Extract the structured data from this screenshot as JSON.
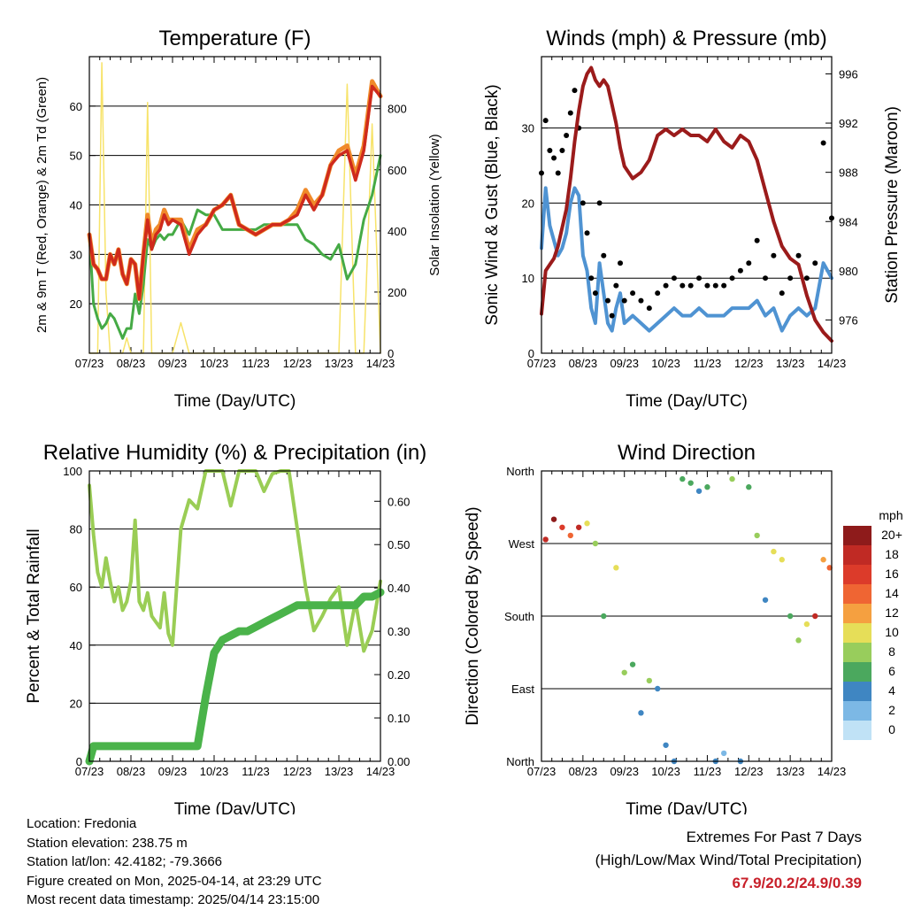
{
  "x_ticks": [
    "07/23",
    "08/23",
    "09/23",
    "10/23",
    "11/23",
    "12/23",
    "13/23",
    "14/23"
  ],
  "colors": {
    "temp_2m": "#cf2a1c",
    "temp_9m": "#f08a2a",
    "dewpoint": "#45aa45",
    "solar": "#f7e36a",
    "wind": "#4f93d2",
    "gust": "#000000",
    "pressure": "#9b1b1b",
    "rh": "#9acd55",
    "precip": "#4ab34a"
  },
  "chart_data": [
    {
      "type": "line",
      "title": "Temperature (F)",
      "xlabel": "Time (Day/UTC)",
      "ylabel": "2m & 9m T (Red, Orange) & 2m Td (Green)",
      "y2label": "Solar Insolation (Yellow)",
      "ylim": [
        10,
        70
      ],
      "y_ticks": [
        20,
        30,
        40,
        50,
        60
      ],
      "y2lim": [
        0,
        970
      ],
      "y2_ticks": [
        0,
        200,
        400,
        600,
        800
      ],
      "x": [
        0,
        0.1,
        0.2,
        0.3,
        0.4,
        0.5,
        0.6,
        0.7,
        0.8,
        0.9,
        1.0,
        1.1,
        1.2,
        1.3,
        1.4,
        1.5,
        1.6,
        1.7,
        1.8,
        1.9,
        2.0,
        2.2,
        2.4,
        2.6,
        2.8,
        3.0,
        3.2,
        3.4,
        3.6,
        3.8,
        4.0,
        4.2,
        4.4,
        4.6,
        4.8,
        5.0,
        5.2,
        5.4,
        5.6,
        5.8,
        6.0,
        6.2,
        6.4,
        6.6,
        6.8,
        7.0
      ],
      "series": [
        {
          "name": "2m T",
          "values": [
            34,
            28,
            27,
            25,
            25,
            30,
            28,
            31,
            26,
            24,
            29,
            28,
            21,
            30,
            37,
            31,
            34,
            35,
            38,
            36,
            37,
            36,
            30,
            34,
            36,
            39,
            40,
            42,
            36,
            35,
            34,
            35,
            36,
            36,
            37,
            38,
            42,
            39,
            42,
            48,
            50,
            51,
            45,
            51,
            64,
            62
          ]
        },
        {
          "name": "9m T",
          "values": [
            34,
            28,
            27,
            25,
            25,
            30,
            28,
            31,
            26,
            24,
            29,
            28,
            21,
            30,
            38,
            32,
            35,
            36,
            39,
            37,
            37,
            37,
            31,
            35,
            36,
            39,
            40,
            42,
            36,
            35,
            34,
            35,
            36,
            36,
            37,
            39,
            43,
            40,
            42,
            48,
            51,
            52,
            46,
            52,
            65,
            62
          ]
        },
        {
          "name": "2m Td",
          "values": [
            34,
            20,
            17,
            15,
            16,
            18,
            17,
            15,
            13,
            15,
            15,
            22,
            18,
            24,
            33,
            31,
            33,
            34,
            33,
            34,
            34,
            37,
            34,
            39,
            38,
            38,
            35,
            35,
            35,
            35,
            35,
            36,
            36,
            36,
            36,
            36,
            33,
            32,
            30,
            29,
            32,
            25,
            28,
            37,
            42,
            50
          ]
        },
        {
          "name": "Solar Insolation",
          "values": [
            0,
            0,
            0,
            950,
            200,
            0,
            0,
            0,
            0,
            50,
            0,
            0,
            0,
            0,
            820,
            0,
            0,
            0,
            0,
            0,
            0,
            100,
            0,
            0,
            0,
            0,
            0,
            0,
            0,
            0,
            0,
            0,
            0,
            0,
            0,
            0,
            0,
            0,
            0,
            0,
            0,
            880,
            0,
            0,
            750,
            0
          ]
        }
      ]
    },
    {
      "type": "line",
      "title": "Winds (mph) & Pressure (mb)",
      "xlabel": "Time (Day/UTC)",
      "ylabel": "Sonic Wind & Gust (Blue, Black)",
      "y2label": "Station Pressure (Maroon)",
      "ylim": [
        0,
        39.5
      ],
      "y_ticks": [
        0,
        10,
        20,
        30
      ],
      "y2lim": [
        973.3,
        997.4
      ],
      "y2_ticks": [
        976,
        980,
        984,
        988,
        992,
        996
      ],
      "x": [
        0,
        0.1,
        0.2,
        0.3,
        0.4,
        0.5,
        0.6,
        0.7,
        0.8,
        0.9,
        1.0,
        1.1,
        1.2,
        1.3,
        1.4,
        1.5,
        1.6,
        1.7,
        1.8,
        1.9,
        2.0,
        2.2,
        2.4,
        2.6,
        2.8,
        3.0,
        3.2,
        3.4,
        3.6,
        3.8,
        4.0,
        4.2,
        4.4,
        4.6,
        4.8,
        5.0,
        5.2,
        5.4,
        5.6,
        5.8,
        6.0,
        6.2,
        6.4,
        6.6,
        6.8,
        7.0
      ],
      "series": [
        {
          "name": "Sonic Wind",
          "values": [
            14,
            22,
            17,
            15,
            13,
            14,
            16,
            20,
            22,
            21,
            13,
            11,
            6,
            4,
            12,
            8,
            4,
            3,
            6,
            8,
            4,
            5,
            4,
            3,
            4,
            5,
            6,
            5,
            5,
            6,
            5,
            5,
            5,
            6,
            6,
            6,
            7,
            5,
            6,
            3,
            5,
            6,
            5,
            6,
            12,
            10
          ]
        },
        {
          "name": "Gust",
          "values": [
            24,
            31,
            27,
            26,
            24,
            27,
            29,
            32,
            35,
            30,
            20,
            16,
            10,
            8,
            20,
            13,
            7,
            5,
            9,
            12,
            7,
            8,
            7,
            6,
            8,
            9,
            10,
            9,
            9,
            10,
            9,
            9,
            9,
            10,
            11,
            12,
            15,
            10,
            13,
            8,
            10,
            13,
            10,
            12,
            28,
            18
          ]
        },
        {
          "name": "Station Pressure",
          "values": [
            976.5,
            980,
            980.5,
            981,
            982,
            983.5,
            985,
            987.5,
            990.5,
            993,
            995,
            996,
            996.5,
            995.5,
            995,
            995.5,
            995,
            993.5,
            992,
            990,
            988.5,
            987.5,
            988,
            989,
            991,
            991.5,
            991,
            991.5,
            991,
            991,
            990.5,
            991.5,
            990.5,
            990,
            991,
            990.5,
            989,
            986.5,
            984,
            982,
            981,
            980.5,
            978,
            976,
            975,
            974.3
          ]
        }
      ]
    },
    {
      "type": "line",
      "title": "Relative Humidity (%) & Precipitation (in)",
      "xlabel": "Time (Day/UTC)",
      "ylabel": "Percent & Total Rainfall",
      "ylim": [
        0,
        100
      ],
      "y_ticks": [
        0,
        20,
        40,
        60,
        80,
        100
      ],
      "y2lim": [
        0,
        0.67
      ],
      "y2_ticks": [
        "0.00",
        "0.10",
        "0.20",
        "0.30",
        "0.40",
        "0.50",
        "0.60"
      ],
      "x": [
        0,
        0.1,
        0.2,
        0.3,
        0.4,
        0.5,
        0.6,
        0.7,
        0.8,
        0.9,
        1.0,
        1.1,
        1.2,
        1.3,
        1.4,
        1.5,
        1.6,
        1.7,
        1.8,
        1.9,
        2.0,
        2.2,
        2.4,
        2.6,
        2.8,
        3.0,
        3.2,
        3.4,
        3.6,
        3.8,
        4.0,
        4.2,
        4.4,
        4.6,
        4.8,
        5.0,
        5.2,
        5.4,
        5.6,
        5.8,
        6.0,
        6.2,
        6.4,
        6.6,
        6.8,
        7.0
      ],
      "series": [
        {
          "name": "Relative Humidity",
          "values": [
            95,
            78,
            65,
            60,
            70,
            62,
            55,
            60,
            52,
            55,
            62,
            83,
            55,
            52,
            58,
            50,
            48,
            46,
            58,
            44,
            40,
            80,
            90,
            87,
            100,
            100,
            100,
            88,
            100,
            100,
            100,
            93,
            99,
            100,
            100,
            80,
            60,
            45,
            50,
            56,
            60,
            40,
            55,
            38,
            45,
            62
          ]
        },
        {
          "name": "Total Precipitation",
          "values": [
            0,
            0.035,
            0.035,
            0.035,
            0.035,
            0.035,
            0.035,
            0.035,
            0.035,
            0.035,
            0.035,
            0.035,
            0.035,
            0.035,
            0.035,
            0.035,
            0.035,
            0.035,
            0.035,
            0.035,
            0.035,
            0.035,
            0.035,
            0.035,
            0.15,
            0.25,
            0.28,
            0.29,
            0.3,
            0.3,
            0.31,
            0.32,
            0.33,
            0.34,
            0.35,
            0.36,
            0.36,
            0.36,
            0.36,
            0.36,
            0.36,
            0.36,
            0.36,
            0.38,
            0.38,
            0.39
          ]
        }
      ]
    },
    {
      "type": "scatter",
      "title": "Wind Direction",
      "xlabel": "Time (Day/UTC)",
      "ylabel": "Direction (Colored By Speed)",
      "ylim": [
        0,
        360
      ],
      "y_ticks": [
        "North",
        "East",
        "South",
        "West",
        "North"
      ],
      "colorbar_label": "mph",
      "colorbar_ticks": [
        "20+",
        "18",
        "16",
        "14",
        "12",
        "10",
        "8",
        "6",
        "4",
        "2",
        "0"
      ],
      "colorbar_colors": [
        "#8e1b1b",
        "#c02a24",
        "#dc3b2a",
        "#ef6533",
        "#f5a040",
        "#e6de58",
        "#98cd5c",
        "#4ba85e",
        "#3f86c2",
        "#7cb8e5",
        "#c0e2f6"
      ],
      "x": [
        0.1,
        0.3,
        0.5,
        0.7,
        0.9,
        1.1,
        1.3,
        1.5,
        1.8,
        2.0,
        2.2,
        2.4,
        2.6,
        2.8,
        3.0,
        3.2,
        3.4,
        3.6,
        3.8,
        4.0,
        4.2,
        4.4,
        4.6,
        4.8,
        5.0,
        5.2,
        5.4,
        5.6,
        5.8,
        6.0,
        6.2,
        6.4,
        6.6,
        6.8,
        6.95
      ],
      "values": [
        275,
        300,
        290,
        280,
        290,
        295,
        270,
        180,
        240,
        110,
        120,
        60,
        100,
        90,
        20,
        0,
        350,
        345,
        335,
        340,
        0,
        10,
        350,
        0,
        340,
        280,
        200,
        260,
        250,
        180,
        150,
        170,
        180,
        250,
        240
      ],
      "speeds": [
        18,
        20,
        16,
        14,
        17,
        10,
        8,
        6,
        9,
        8,
        5,
        4,
        7,
        3,
        4,
        3,
        5,
        6,
        4,
        5,
        3,
        2,
        7,
        4,
        5,
        8,
        4,
        9,
        10,
        5,
        7,
        9,
        17,
        12,
        14
      ]
    }
  ],
  "footer": {
    "location": "Location: Fredonia",
    "elevation": "Station elevation: 238.75 m",
    "latlon": "Station lat/lon: 42.4182; -79.3666",
    "created": "Figure created on Mon, 2025-04-14, at 23:29 UTC",
    "timestamp": "Most recent data timestamp: 2025/04/14 23:15:00"
  },
  "extremes": {
    "heading": "Extremes For Past 7 Days",
    "subheading": "(High/Low/Max Wind/Total Precipitation)",
    "values": "67.9/20.2/24.9/0.39"
  }
}
